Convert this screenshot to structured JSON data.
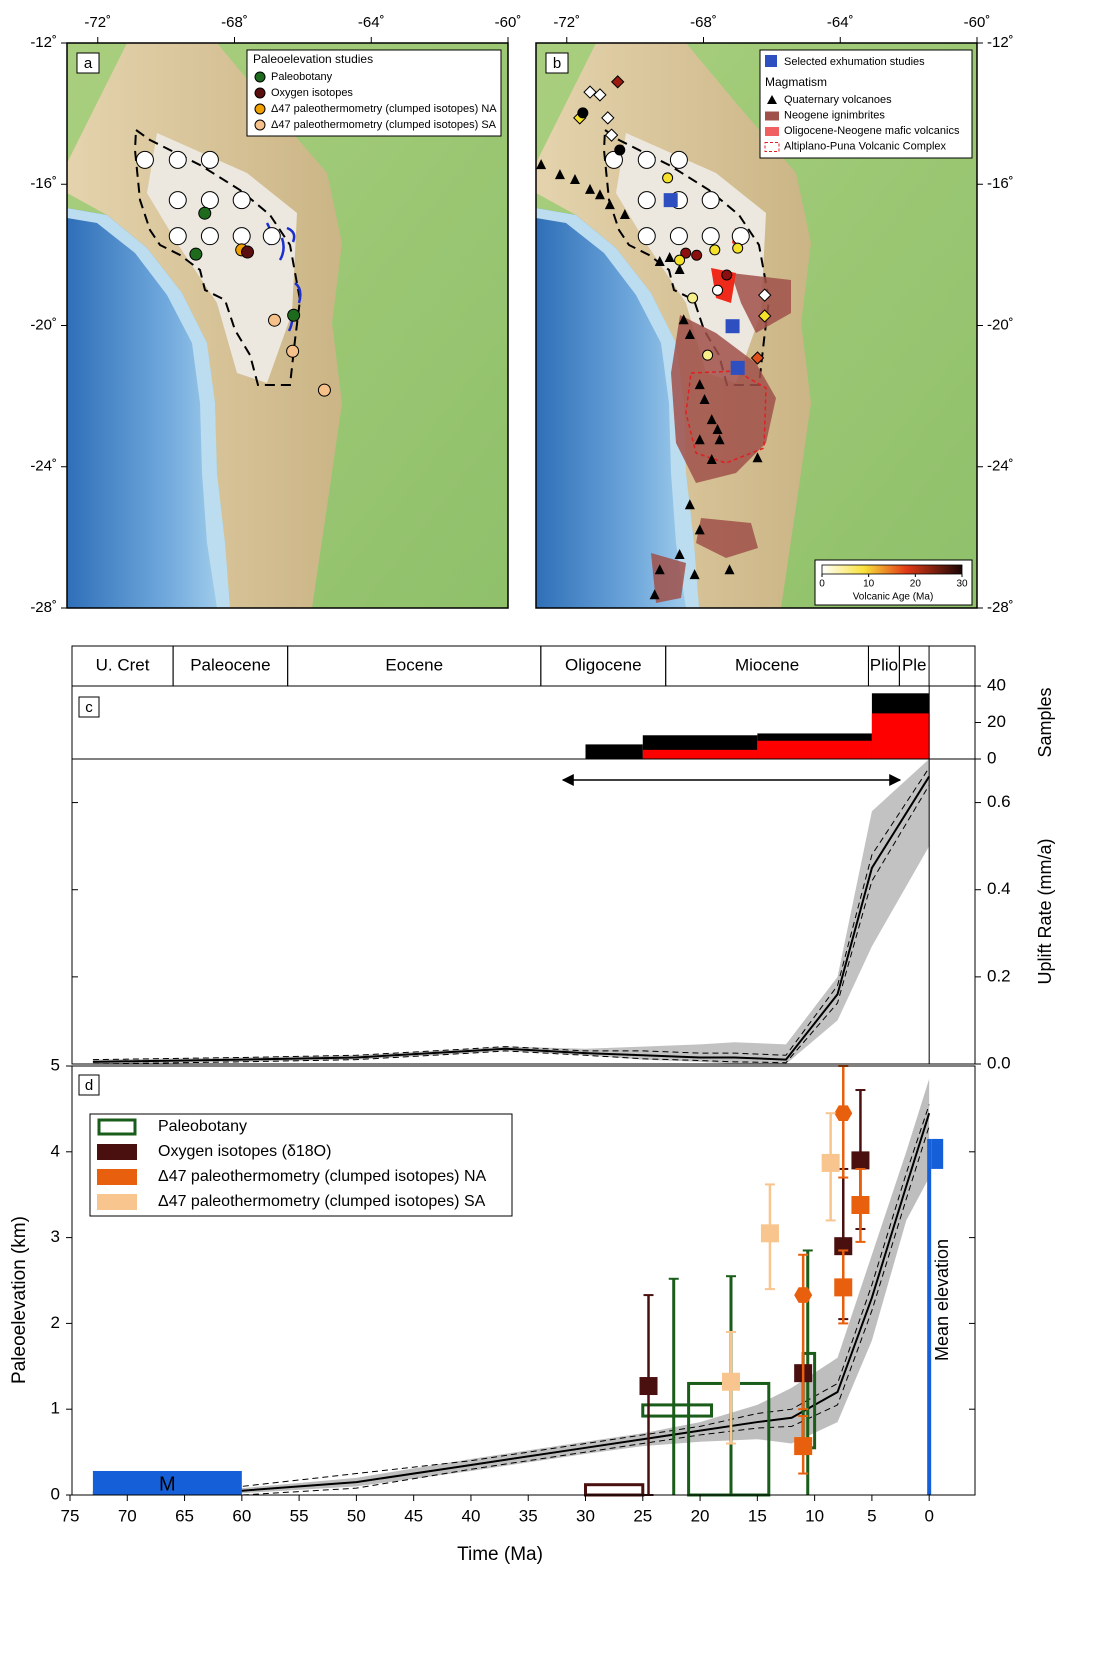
{
  "maps": {
    "xlim": [
      -72.9,
      -60
    ],
    "ylim": [
      -28,
      -12
    ],
    "xticks": [
      {
        "value": -72,
        "label": "-72˚"
      },
      {
        "value": -68,
        "label": "-68˚"
      },
      {
        "value": -64,
        "label": "-64˚"
      },
      {
        "value": -60,
        "label": "-60˚"
      }
    ],
    "yticks": [
      {
        "value": -12,
        "label": "-12˚"
      },
      {
        "value": -16,
        "label": "-16˚"
      },
      {
        "value": -20,
        "label": "-20˚"
      },
      {
        "value": -24,
        "label": "-24˚"
      },
      {
        "value": -28,
        "label": "-28˚"
      }
    ],
    "sites": [
      {
        "lon": -70.62,
        "lat": -15.31
      },
      {
        "lon": -69.66,
        "lat": -15.31
      },
      {
        "lon": -68.72,
        "lat": -15.31
      },
      {
        "lon": -69.66,
        "lat": -16.45
      },
      {
        "lon": -68.72,
        "lat": -16.45
      },
      {
        "lon": -67.79,
        "lat": -16.45
      },
      {
        "lon": -69.66,
        "lat": -17.47
      },
      {
        "lon": -68.72,
        "lat": -17.47
      },
      {
        "lon": -67.79,
        "lat": -17.47
      },
      {
        "lon": -66.91,
        "lat": -17.47
      }
    ],
    "panels": [
      {
        "label": "a",
        "legend_title": "Paleoelevation studies",
        "legend": [
          {
            "name": "Paleobotany",
            "color": "#1e6b1e"
          },
          {
            "name": "Oxygen isotopes",
            "color": "#5a0e0e"
          },
          {
            "name": "Δ47 paleothermometry (clumped isotopes) NA",
            "color": "#f0a000"
          },
          {
            "name": "Δ47 paleothermometry (clumped isotopes) SA",
            "color": "#f5c08a"
          }
        ],
        "points": [
          {
            "lon": -68.87,
            "lat": -16.82,
            "color": "#1e6b1e"
          },
          {
            "lon": -69.13,
            "lat": -17.98,
            "color": "#1e6b1e"
          },
          {
            "lon": -67.79,
            "lat": -17.86,
            "color": "#f0a000"
          },
          {
            "lon": -67.62,
            "lat": -17.92,
            "color": "#5a0e0e"
          },
          {
            "lon": -66.27,
            "lat": -19.71,
            "color": "#1e6b1e"
          },
          {
            "lon": -66.83,
            "lat": -19.85,
            "color": "#f5c08a"
          },
          {
            "lon": -66.3,
            "lat": -20.73,
            "color": "#f5c08a"
          },
          {
            "lon": -65.37,
            "lat": -21.83,
            "color": "#f5c08a"
          }
        ]
      },
      {
        "label": "b",
        "exhumation": {
          "name": "Selected exhumation studies",
          "color": "#2e4fbf",
          "points": [
            {
              "lon": -68.96,
              "lat": -16.45
            },
            {
              "lon": -67.15,
              "lat": -20.02
            },
            {
              "lon": -67.0,
              "lat": -21.2
            }
          ]
        },
        "magmatism_title": "Magmatism",
        "magmatism": [
          {
            "name": "Quaternary volcanoes"
          },
          {
            "name": "Neogene ignimbrites"
          },
          {
            "name": "Oligocene-Neogene mafic volcanics"
          },
          {
            "name": "Altiplano-Puna Volcanic Complex"
          }
        ],
        "volcanoes": [
          {
            "lon": -72.75,
            "lat": -15.46
          },
          {
            "lon": -72.2,
            "lat": -15.74
          },
          {
            "lon": -71.76,
            "lat": -15.88
          },
          {
            "lon": -71.32,
            "lat": -16.16
          },
          {
            "lon": -71.03,
            "lat": -16.31
          },
          {
            "lon": -70.74,
            "lat": -16.59
          },
          {
            "lon": -70.3,
            "lat": -16.87
          },
          {
            "lon": -69.28,
            "lat": -18.2
          },
          {
            "lon": -68.99,
            "lat": -18.09
          },
          {
            "lon": -68.7,
            "lat": -18.43
          },
          {
            "lon": -68.58,
            "lat": -19.85
          },
          {
            "lon": -68.4,
            "lat": -20.27
          },
          {
            "lon": -68.11,
            "lat": -21.69
          },
          {
            "lon": -67.97,
            "lat": -22.11
          },
          {
            "lon": -67.76,
            "lat": -22.68
          },
          {
            "lon": -67.59,
            "lat": -22.96
          },
          {
            "lon": -68.11,
            "lat": -23.25
          },
          {
            "lon": -67.53,
            "lat": -23.25
          },
          {
            "lon": -68.4,
            "lat": -25.09
          },
          {
            "lon": -68.11,
            "lat": -25.8
          },
          {
            "lon": -68.7,
            "lat": -26.5
          },
          {
            "lon": -68.26,
            "lat": -27.07
          },
          {
            "lon": -69.28,
            "lat": -26.93
          },
          {
            "lon": -69.43,
            "lat": -27.64
          },
          {
            "lon": -67.76,
            "lat": -23.81
          },
          {
            "lon": -66.42,
            "lat": -23.76
          },
          {
            "lon": -67.24,
            "lat": -26.93
          }
        ],
        "points": [
          {
            "lon": -71.32,
            "lat": -13.39,
            "color": "#ffffff",
            "marker": "diamond"
          },
          {
            "lon": -71.03,
            "lat": -13.47,
            "color": "#ffffff",
            "marker": "diamond"
          },
          {
            "lon": -71.62,
            "lat": -14.12,
            "color": "#f5e12a",
            "marker": "diamond"
          },
          {
            "lon": -70.51,
            "lat": -13.1,
            "color": "#9b1b10",
            "marker": "diamond"
          },
          {
            "lon": -70.8,
            "lat": -14.12,
            "color": "#ffffff",
            "marker": "diamond"
          },
          {
            "lon": -70.69,
            "lat": -14.61,
            "color": "#ffffff",
            "marker": "diamond"
          },
          {
            "lon": -66.21,
            "lat": -19.14,
            "color": "#ffffff",
            "marker": "diamond"
          },
          {
            "lon": -66.21,
            "lat": -19.73,
            "color": "#f5e12a",
            "marker": "diamond"
          },
          {
            "lon": -66.42,
            "lat": -20.92,
            "color": "#e0501a",
            "marker": "diamond"
          },
          {
            "lon": -71.53,
            "lat": -13.98,
            "color": "#000000",
            "marker": "circle"
          },
          {
            "lon": -70.45,
            "lat": -15.03,
            "color": "#000000",
            "marker": "circle"
          },
          {
            "lon": -69.05,
            "lat": -15.82,
            "color": "#f5e12a",
            "marker": "circle"
          },
          {
            "lon": -68.2,
            "lat": -18.01,
            "color": "#8b0f0f",
            "marker": "circle"
          },
          {
            "lon": -67.67,
            "lat": -17.86,
            "color": "#f5e12a",
            "marker": "circle"
          },
          {
            "lon": -67.0,
            "lat": -17.81,
            "color": "#f5e12a",
            "marker": "circle"
          },
          {
            "lon": -67.32,
            "lat": -18.57,
            "color": "#8b0f0f",
            "marker": "circle"
          },
          {
            "lon": -67.59,
            "lat": -19.0,
            "color": "#ffffff",
            "marker": "circle"
          },
          {
            "lon": -68.32,
            "lat": -19.22,
            "color": "#f7f08a",
            "marker": "circle"
          },
          {
            "lon": -67.88,
            "lat": -20.84,
            "color": "#f7f08a",
            "marker": "circle"
          },
          {
            "lon": -68.52,
            "lat": -17.95,
            "color": "#8b0f0f",
            "marker": "circle"
          },
          {
            "lon": -68.7,
            "lat": -18.15,
            "color": "#f5e12a",
            "marker": "circle"
          }
        ],
        "colorbar": {
          "label": "Volcanic Age (Ma)",
          "lim": [
            0,
            30
          ],
          "ticks": [
            0,
            10,
            20,
            30
          ]
        }
      }
    ]
  },
  "timescale": {
    "epochs": [
      {
        "name": "U. Cret",
        "start": 75,
        "end": 66
      },
      {
        "name": "Paleocene",
        "start": 66,
        "end": 56
      },
      {
        "name": "Eocene",
        "start": 56,
        "end": 33.9
      },
      {
        "name": "Oligocene",
        "start": 33.9,
        "end": 23
      },
      {
        "name": "Miocene",
        "start": 23,
        "end": 5.3
      },
      {
        "name": "Plio",
        "start": 5.3,
        "end": 2.6
      },
      {
        "name": "Ple",
        "start": 2.6,
        "end": 0.01
      }
    ]
  },
  "chart_data": [
    {
      "type": "histogram",
      "label": "c",
      "ylabel": "Samples",
      "xlim": [
        75,
        -4
      ],
      "ylim": [
        0,
        40
      ],
      "yticks": [
        0,
        20,
        40
      ],
      "bins": [
        30,
        25,
        15,
        5,
        0
      ],
      "series": [
        {
          "color": "#000000",
          "values": [
            8,
            13,
            14,
            36
          ]
        },
        {
          "color": "#ff0000",
          "values": [
            0,
            5,
            10,
            25
          ]
        }
      ]
    },
    {
      "type": "line",
      "ylabel": "Uplift Rate (mm/a)",
      "xlim": [
        75,
        -4
      ],
      "ylim": [
        0,
        0.7
      ],
      "yticks": [
        {
          "value": 0,
          "label": "0.0"
        },
        0.2,
        0.4,
        0.6
      ],
      "x": [
        73,
        60,
        50,
        40,
        37,
        30,
        25,
        20,
        17,
        12.5,
        8,
        5,
        0
      ],
      "values": [
        0.005,
        0.01,
        0.015,
        0.03,
        0.035,
        0.025,
        0.02,
        0.015,
        0.015,
        0.01,
        0.16,
        0.45,
        0.66
      ],
      "upper": [
        0.01,
        0.015,
        0.02,
        0.035,
        0.04,
        0.03,
        0.03,
        0.025,
        0.025,
        0.02,
        0.18,
        0.48,
        0.68
      ],
      "lower": [
        0,
        0.005,
        0.01,
        0.025,
        0.03,
        0.02,
        0.012,
        0.008,
        0.005,
        0.003,
        0.14,
        0.42,
        0.64
      ],
      "band_upper": [
        0.01,
        0.015,
        0.02,
        0.035,
        0.04,
        0.035,
        0.04,
        0.045,
        0.05,
        0.045,
        0.2,
        0.58,
        0.7
      ],
      "band_lower": [
        0,
        0.005,
        0.01,
        0.025,
        0.03,
        0.02,
        0.01,
        0.005,
        0,
        0,
        0.1,
        0.27,
        0.5
      ]
    },
    {
      "type": "paleoelevation",
      "label": "d",
      "xlabel": "Time (Ma)",
      "ylabel": "Paleoelevation (km)",
      "xlim": [
        75,
        -4
      ],
      "ylim": [
        0,
        5
      ],
      "xticks": [
        75,
        70,
        65,
        60,
        55,
        50,
        45,
        40,
        35,
        30,
        25,
        20,
        15,
        10,
        5,
        0
      ],
      "yticks": [
        0,
        1,
        2,
        3,
        4,
        5
      ],
      "x": [
        73,
        60,
        50,
        40,
        30,
        25,
        20,
        15,
        12,
        8,
        5,
        2,
        0
      ],
      "values": [
        0.02,
        0.05,
        0.15,
        0.35,
        0.55,
        0.65,
        0.75,
        0.85,
        0.9,
        1.2,
        2.3,
        3.6,
        4.45
      ],
      "upper": [
        0.04,
        0.1,
        0.25,
        0.4,
        0.6,
        0.7,
        0.8,
        0.95,
        1.0,
        1.3,
        2.45,
        3.75,
        4.55
      ],
      "lower": [
        0,
        0,
        0.08,
        0.3,
        0.5,
        0.6,
        0.7,
        0.78,
        0.8,
        1.05,
        2.15,
        3.45,
        4.3
      ],
      "band_upper": [
        0.03,
        0.08,
        0.2,
        0.42,
        0.62,
        0.72,
        0.85,
        1.05,
        1.25,
        1.6,
        2.8,
        4.0,
        4.85
      ],
      "band_lower": [
        0,
        0.02,
        0.1,
        0.28,
        0.48,
        0.57,
        0.62,
        0.65,
        0.6,
        0.85,
        1.8,
        3.2,
        3.7
      ],
      "series": [
        {
          "name": "Paleobotany",
          "color": "#1a5c1a",
          "legend": "outline",
          "boxes": [
            {
              "x": [
                25,
                19
              ],
              "y": [
                0.92,
                1.05
              ]
            },
            {
              "x": [
                21,
                14
              ],
              "y": [
                0,
                1.3
              ]
            },
            {
              "x": [
                11,
                10
              ],
              "y": [
                0.55,
                1.65
              ]
            }
          ],
          "ranges": [
            {
              "x": 22.3,
              "low": 0,
              "high": 2.52
            },
            {
              "x": 17.3,
              "low": 0,
              "high": 2.55
            },
            {
              "x": 10.6,
              "low": 0,
              "high": 2.85
            }
          ]
        },
        {
          "name": "Oxygen isotopes (δ18O)",
          "color": "#4a1010",
          "boxes": [
            {
              "x": [
                30,
                25
              ],
              "y": [
                0,
                0.12
              ]
            }
          ],
          "points": [
            {
              "x": 24.5,
              "y": 1.27,
              "low": 0,
              "high": 2.33,
              "marker": "square"
            },
            {
              "x": 11,
              "y": 1.42,
              "marker": "square"
            },
            {
              "x": 7.5,
              "y": 2.9,
              "low": 2.05,
              "high": 3.8,
              "marker": "square"
            },
            {
              "x": 6,
              "y": 3.9,
              "low": 3.1,
              "high": 4.72,
              "marker": "square"
            }
          ]
        },
        {
          "name": "Δ47 paleothermometry (clumped isotopes) NA",
          "color": "#e8600e",
          "points": [
            {
              "x": 11,
              "y": 2.33,
              "low": 1.0,
              "high": 2.8,
              "marker": "hexagon"
            },
            {
              "x": 11,
              "y": 0.57,
              "low": 0.25,
              "high": 0.92,
              "marker": "square"
            },
            {
              "x": 7.5,
              "y": 4.45,
              "low": 3.7,
              "high": 5.0,
              "marker": "hexagon"
            },
            {
              "x": 7.5,
              "y": 2.42,
              "low": 2.0,
              "high": 2.85,
              "marker": "square"
            },
            {
              "x": 6,
              "y": 3.38,
              "low": 2.95,
              "high": 3.8,
              "marker": "square"
            }
          ]
        },
        {
          "name": "Δ47 paleothermometry (clumped isotopes) SA",
          "color": "#f9c58e",
          "points": [
            {
              "x": 17.3,
              "y": 1.32,
              "low": 0.6,
              "high": 1.9,
              "marker": "square"
            },
            {
              "x": 13.9,
              "y": 3.05,
              "low": 2.4,
              "high": 3.62,
              "marker": "square"
            },
            {
              "x": 8.6,
              "y": 3.87,
              "low": 3.2,
              "high": 4.45,
              "marker": "square"
            }
          ]
        }
      ],
      "modern_bar": {
        "label": "M",
        "x": [
          73,
          60
        ],
        "value": 0.28,
        "color": "#1560d8"
      },
      "mean_elevation": {
        "label": "Mean elevation",
        "x": 0,
        "value": 4.15,
        "color": "#1560d8"
      }
    }
  ]
}
